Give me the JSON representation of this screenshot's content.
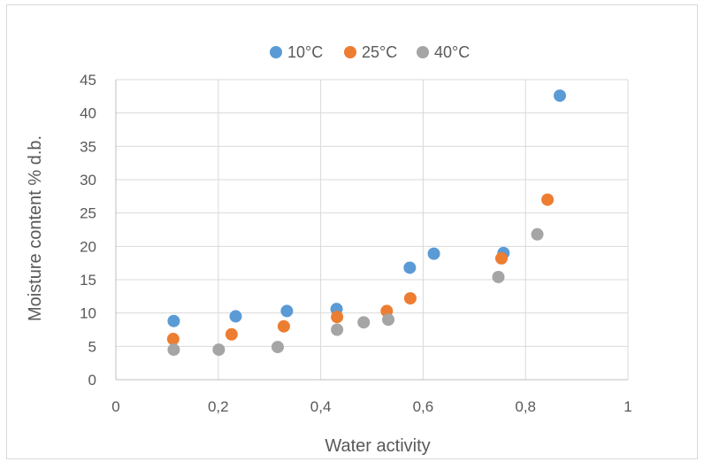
{
  "chart_data": {
    "type": "scatter",
    "title": "",
    "xlabel": "Water activity",
    "ylabel": "Moisture content % d.b.",
    "xlim": [
      0,
      1
    ],
    "ylim": [
      0,
      45
    ],
    "x_ticks": [
      0,
      0.2,
      0.4,
      0.6,
      0.8,
      1
    ],
    "x_tick_labels": [
      "0",
      "0,2",
      "0,4",
      "0,6",
      "0,8",
      "1"
    ],
    "y_ticks": [
      0,
      5,
      10,
      15,
      20,
      25,
      30,
      35,
      40,
      45
    ],
    "y_tick_labels": [
      "0",
      "5",
      "10",
      "15",
      "20",
      "25",
      "30",
      "35",
      "40",
      "45"
    ],
    "grid": true,
    "legend_position": "top",
    "series": [
      {
        "name": "10°C",
        "color": "#5b9bd5",
        "points": [
          [
            0.113,
            8.8
          ],
          [
            0.234,
            9.5
          ],
          [
            0.334,
            10.3
          ],
          [
            0.431,
            10.6
          ],
          [
            0.574,
            16.8
          ],
          [
            0.621,
            18.9
          ],
          [
            0.757,
            19.0
          ],
          [
            0.867,
            42.6
          ]
        ]
      },
      {
        "name": "25°C",
        "color": "#ed7d31",
        "points": [
          [
            0.112,
            6.1
          ],
          [
            0.226,
            6.8
          ],
          [
            0.328,
            8.0
          ],
          [
            0.432,
            9.4
          ],
          [
            0.529,
            10.3
          ],
          [
            0.575,
            12.2
          ],
          [
            0.753,
            18.2
          ],
          [
            0.843,
            27.0
          ]
        ]
      },
      {
        "name": "40°C",
        "color": "#a5a5a5",
        "points": [
          [
            0.113,
            4.5
          ],
          [
            0.201,
            4.5
          ],
          [
            0.316,
            4.9
          ],
          [
            0.432,
            7.5
          ],
          [
            0.484,
            8.6
          ],
          [
            0.532,
            9.0
          ],
          [
            0.747,
            15.4
          ],
          [
            0.823,
            21.8
          ]
        ]
      }
    ]
  }
}
